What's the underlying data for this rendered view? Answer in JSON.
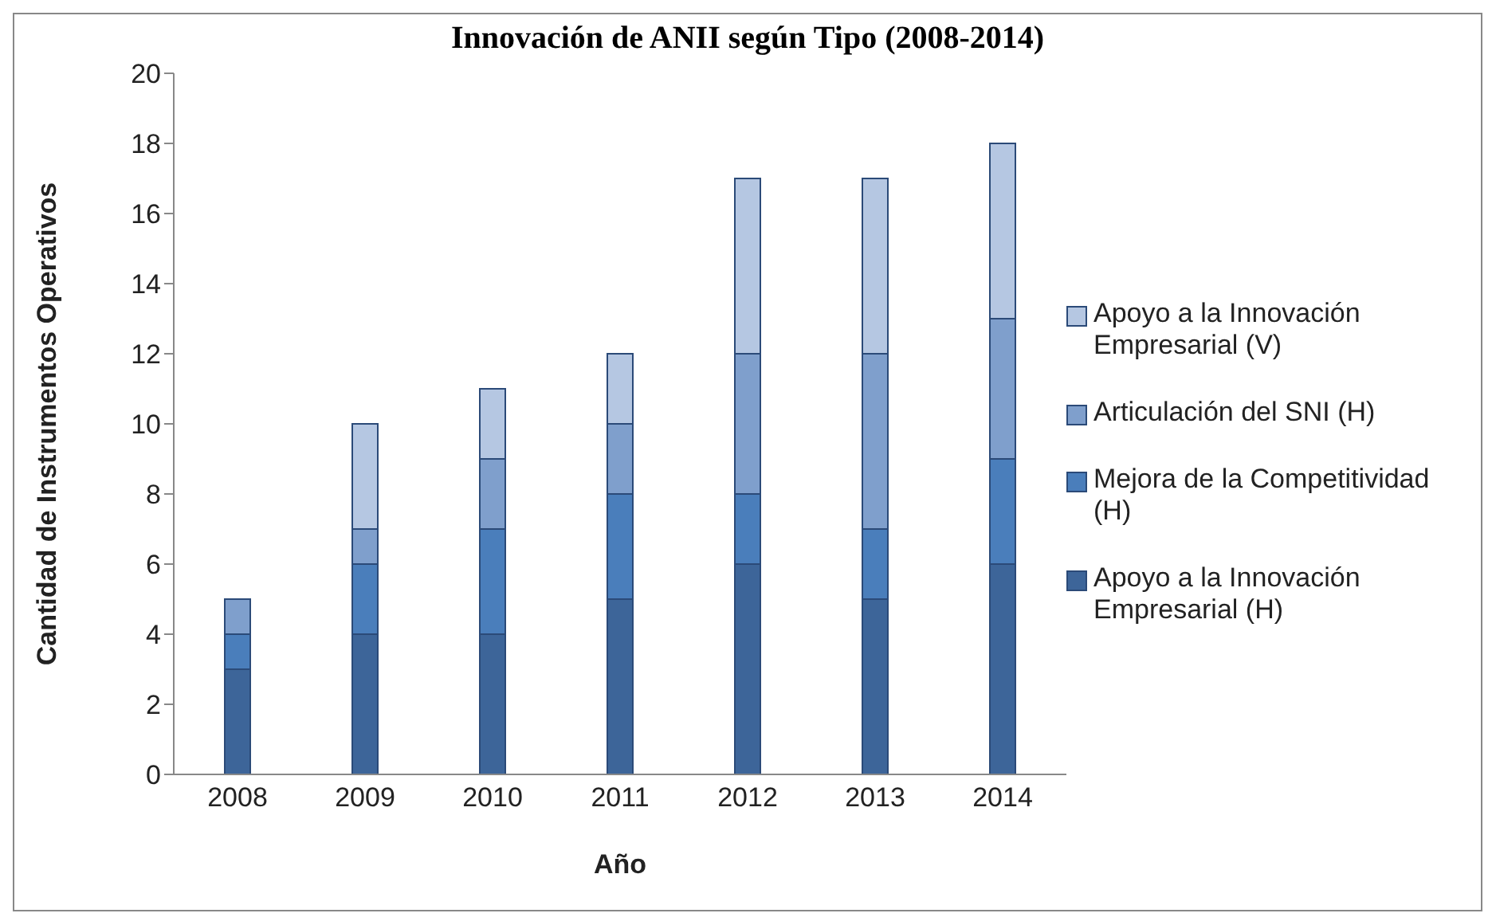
{
  "chart_data": {
    "type": "bar",
    "title": "Innovación de ANII según Tipo (2008-2014)",
    "xlabel": "Año",
    "ylabel": "Cantidad de Instrumentos Operativos",
    "categories": [
      "2008",
      "2009",
      "2010",
      "2011",
      "2012",
      "2013",
      "2014"
    ],
    "series": [
      {
        "name": "Apoyo a la Innovación Empresarial (H)",
        "color": "#3d6599",
        "values": [
          3,
          4,
          4,
          5,
          6,
          5,
          6
        ]
      },
      {
        "name": "Mejora de la Competitividad (H)",
        "color": "#4a7ebb",
        "values": [
          1,
          2,
          3,
          3,
          2,
          2,
          3
        ]
      },
      {
        "name": "Articulación del SNI (H)",
        "color": "#7f9fcc",
        "values": [
          1,
          1,
          2,
          2,
          4,
          5,
          4
        ]
      },
      {
        "name": "Apoyo a la Innovación Empresarial (V)",
        "color": "#b5c7e2",
        "values": [
          0,
          3,
          2,
          2,
          5,
          5,
          5
        ]
      }
    ],
    "stacked": true,
    "ylim": [
      0,
      20
    ],
    "yticks": [
      0,
      2,
      4,
      6,
      8,
      10,
      12,
      14,
      16,
      18,
      20
    ],
    "grid": false,
    "legend": "right"
  }
}
